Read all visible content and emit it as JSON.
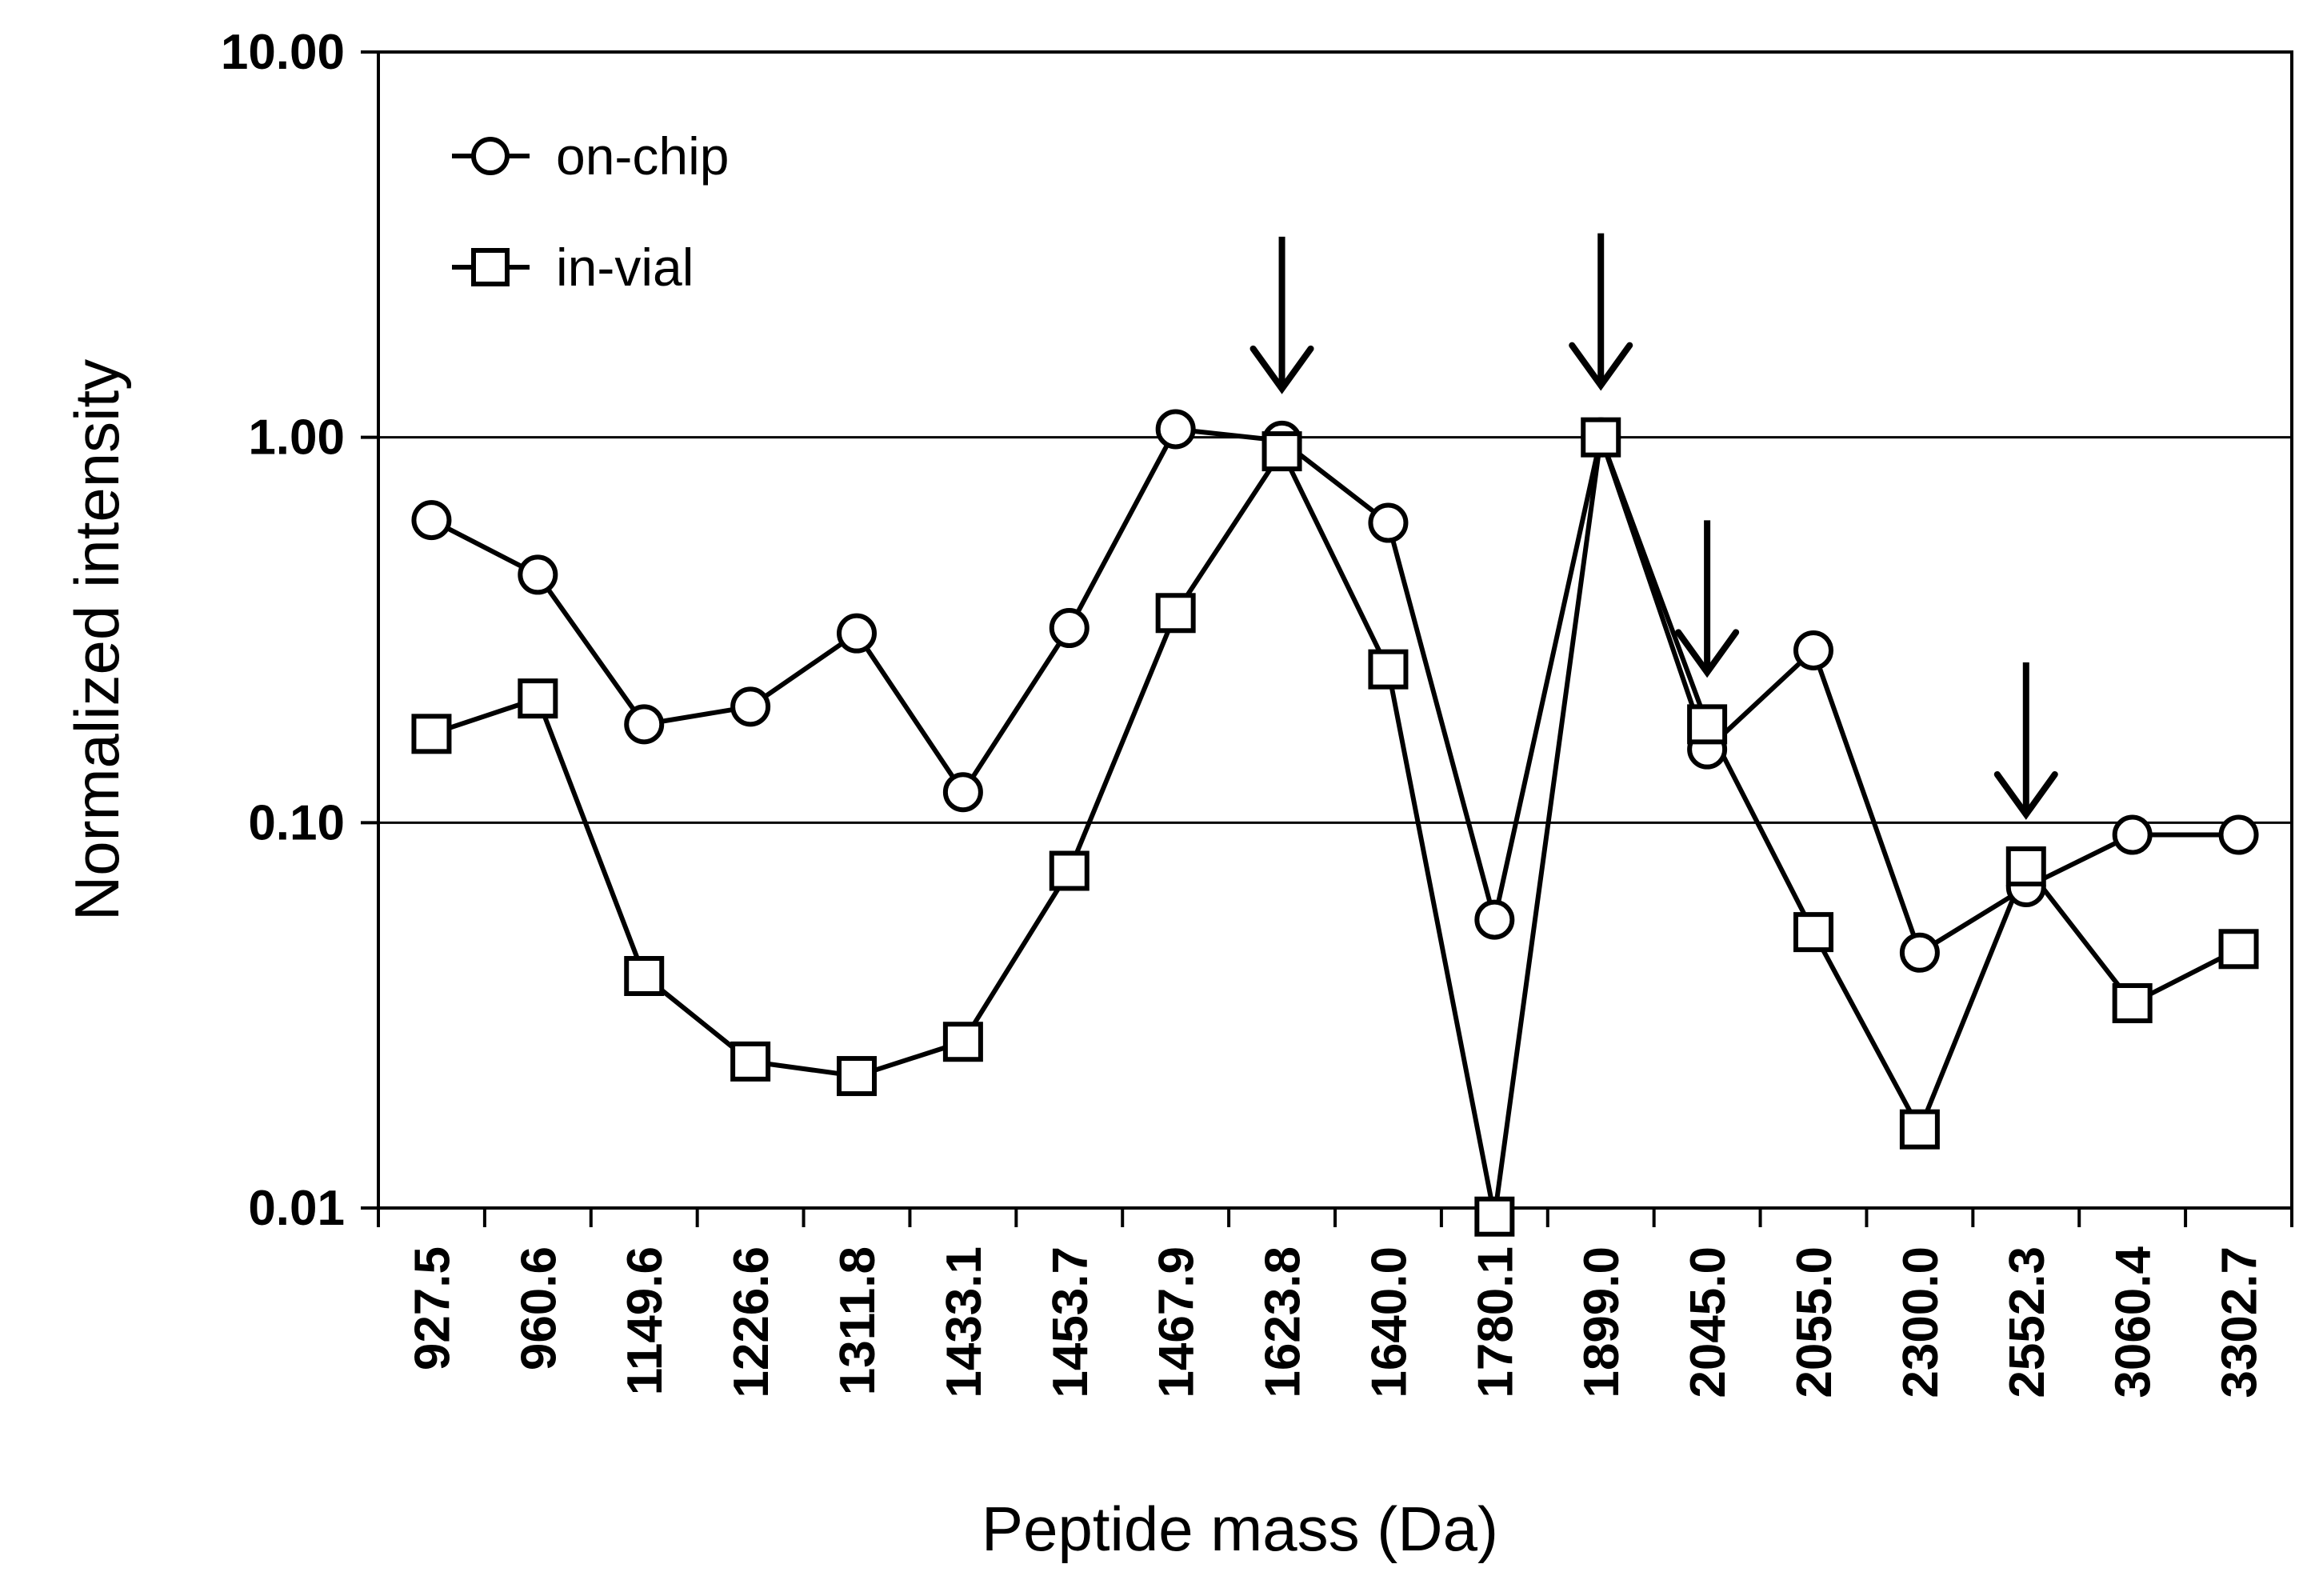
{
  "chart_data": {
    "type": "line",
    "title": "",
    "xlabel": "Peptide mass (Da)",
    "ylabel": "Normalized intensity",
    "yscale": "log",
    "ylim": [
      0.01,
      10
    ],
    "yticks": [
      "0.01",
      "0.10",
      "1.00",
      "10.00"
    ],
    "ytick_values": [
      0.01,
      0.1,
      1,
      10
    ],
    "categories": [
      "927.5",
      "960.6",
      "1149.6",
      "1226.6",
      "1311.8",
      "1433.1",
      "1453.7",
      "1467.9",
      "1623.8",
      "1640.0",
      "1780.1",
      "1899.0",
      "2045.0",
      "2055.0",
      "2300.0",
      "2552.3",
      "3060.4",
      "3302.7"
    ],
    "series": [
      {
        "name": "on-chip",
        "marker": "circle",
        "values": [
          0.61,
          0.44,
          0.18,
          0.2,
          0.31,
          0.12,
          0.32,
          1.05,
          0.98,
          0.6,
          0.056,
          1.0,
          0.155,
          0.28,
          0.046,
          0.068,
          0.093,
          0.093
        ]
      },
      {
        "name": "in-vial",
        "marker": "square",
        "values": [
          0.17,
          0.21,
          0.04,
          0.024,
          0.022,
          0.027,
          0.075,
          0.35,
          0.92,
          0.25,
          0.0095,
          1.0,
          0.18,
          0.052,
          0.016,
          0.077,
          0.034,
          0.047
        ]
      }
    ],
    "arrows_at": [
      "1623.8",
      "1899.0",
      "2045.0",
      "2552.3"
    ],
    "gridlines": "horizontal",
    "legend": "top-left"
  }
}
